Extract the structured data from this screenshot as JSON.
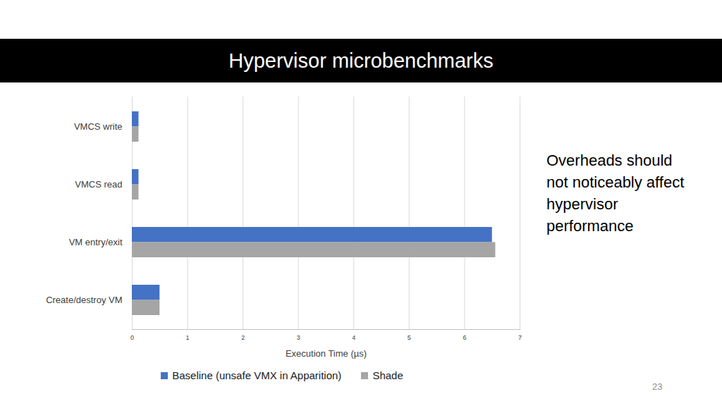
{
  "chart_data": {
    "type": "bar",
    "title": "Hypervisor microbenchmarks",
    "orientation": "horizontal",
    "categories": [
      "VMCS write",
      "VMCS read",
      "VM entry/exit",
      "Create/destroy VM"
    ],
    "series": [
      {
        "name": "Baseline (unsafe VMX in Apparition)",
        "color": "#4472c4",
        "values": [
          0.12,
          0.12,
          6.5,
          0.5
        ]
      },
      {
        "name": "Shade",
        "color": "#a5a5a5",
        "values": [
          0.12,
          0.12,
          6.56,
          0.5
        ]
      }
    ],
    "x_label": "Execution Time (µs)",
    "xlim": [
      0,
      7
    ],
    "xticks": [
      0,
      1,
      2,
      3,
      4,
      5,
      6,
      7
    ],
    "grid": true,
    "legend": "bottom",
    "annotations": [
      "Overheads should not noticeably affect hypervisor performance",
      "23"
    ]
  }
}
